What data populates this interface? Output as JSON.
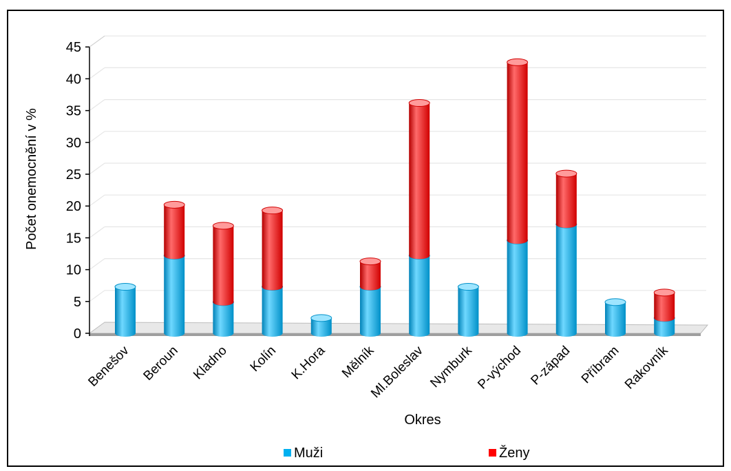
{
  "chart_data": {
    "type": "bar",
    "stacked": true,
    "style": "3d-cylinder",
    "title": "",
    "xlabel": "Okres",
    "ylabel": "Počet onemocnění v %",
    "ylim": [
      0,
      45
    ],
    "yticks": [
      0,
      5,
      10,
      15,
      20,
      25,
      30,
      35,
      40,
      45
    ],
    "grid": true,
    "legend_position": "bottom",
    "categories": [
      "Benešov",
      "Beroun",
      "Kladno",
      "Kolín",
      "K.Hora",
      "Mělník",
      "Ml.Boleslav",
      "Nymburk",
      "P-východ",
      "P-západ",
      "Příbram",
      "Rakovník"
    ],
    "series": [
      {
        "name": "Muži",
        "color": "#00b0f0",
        "values": [
          7.3,
          12.2,
          4.9,
          7.3,
          2.4,
          7.3,
          12.2,
          7.3,
          14.6,
          17.1,
          4.9,
          2.4
        ]
      },
      {
        "name": "Ženy",
        "color": "#ff0000",
        "values": [
          0,
          8.0,
          12.0,
          12.0,
          0,
          4.0,
          24.0,
          0,
          28.0,
          8.0,
          0,
          4.0
        ]
      }
    ]
  }
}
